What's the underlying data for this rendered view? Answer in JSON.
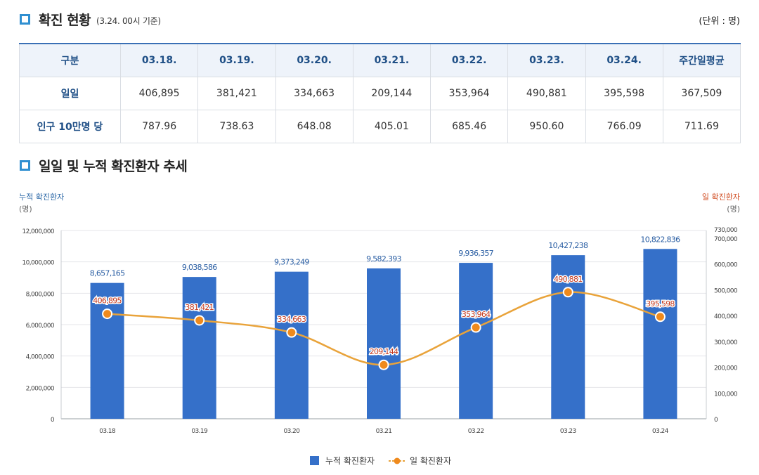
{
  "section1": {
    "title": "확진 현황",
    "subtitle": "(3.24. 00시 기준)",
    "unit": "(단위 : 명)"
  },
  "table": {
    "header": [
      "구분",
      "03.18.",
      "03.19.",
      "03.20.",
      "03.21.",
      "03.22.",
      "03.23.",
      "03.24.",
      "주간일평균"
    ],
    "rows": [
      {
        "label": "일일",
        "values": [
          "406,895",
          "381,421",
          "334,663",
          "209,144",
          "353,964",
          "490,881",
          "395,598",
          "367,509"
        ]
      },
      {
        "label": "인구 10만명 당",
        "values": [
          "787.96",
          "738.63",
          "648.08",
          "405.01",
          "685.46",
          "950.60",
          "766.09",
          "711.69"
        ]
      }
    ]
  },
  "section2": {
    "title": "일일 및 누적 확진환자 추세"
  },
  "colors": {
    "bar": "#3570c9",
    "line": "#e9a33a",
    "marker": "#ef8a1d",
    "left_axis_label": "#2f6aa8",
    "right_axis_label": "#d2532a",
    "bar_label": "#2a5ea3",
    "line_label": "#c43a1f"
  },
  "chart_data": {
    "type": "bar+line",
    "categories": [
      "03.18",
      "03.19",
      "03.20",
      "03.21",
      "03.22",
      "03.23",
      "03.24"
    ],
    "series": [
      {
        "name": "누적 확진환자",
        "type": "bar",
        "axis": "left",
        "values": [
          8657165,
          9038586,
          9373249,
          9582393,
          9936357,
          10427238,
          10822836
        ],
        "labels": [
          "8,657,165",
          "9,038,586",
          "9,373,249",
          "9,582,393",
          "9,936,357",
          "10,427,238",
          "10,822,836"
        ]
      },
      {
        "name": "일 확진환자",
        "type": "line",
        "axis": "right",
        "values": [
          406895,
          381421,
          334663,
          209144,
          353964,
          490881,
          395598
        ],
        "labels": [
          "406,895",
          "381,421",
          "334,663",
          "209,144",
          "353,964",
          "490,881",
          "395,598"
        ]
      }
    ],
    "left_axis": {
      "label": "누적 확진환자",
      "unit": "(명)",
      "ylim": [
        0,
        12000000
      ],
      "ticks": [
        0,
        2000000,
        4000000,
        6000000,
        8000000,
        10000000,
        12000000
      ],
      "tick_labels": [
        "0",
        "2,000,000",
        "4,000,000",
        "6,000,000",
        "8,000,000",
        "10,000,000",
        "12,000,000"
      ]
    },
    "right_axis": {
      "label": "일 확진환자",
      "unit": "(명)",
      "ylim": [
        0,
        730000
      ],
      "ticks": [
        0,
        100000,
        200000,
        300000,
        400000,
        500000,
        600000,
        700000,
        730000
      ],
      "tick_labels": [
        "0",
        "100,000",
        "200,000",
        "300,000",
        "400,000",
        "500,000",
        "600,000",
        "700,000",
        "730,000"
      ]
    },
    "legend": [
      "누적 확진환자",
      "일 확진환자"
    ],
    "legend_position": "bottom-center",
    "grid": true
  }
}
